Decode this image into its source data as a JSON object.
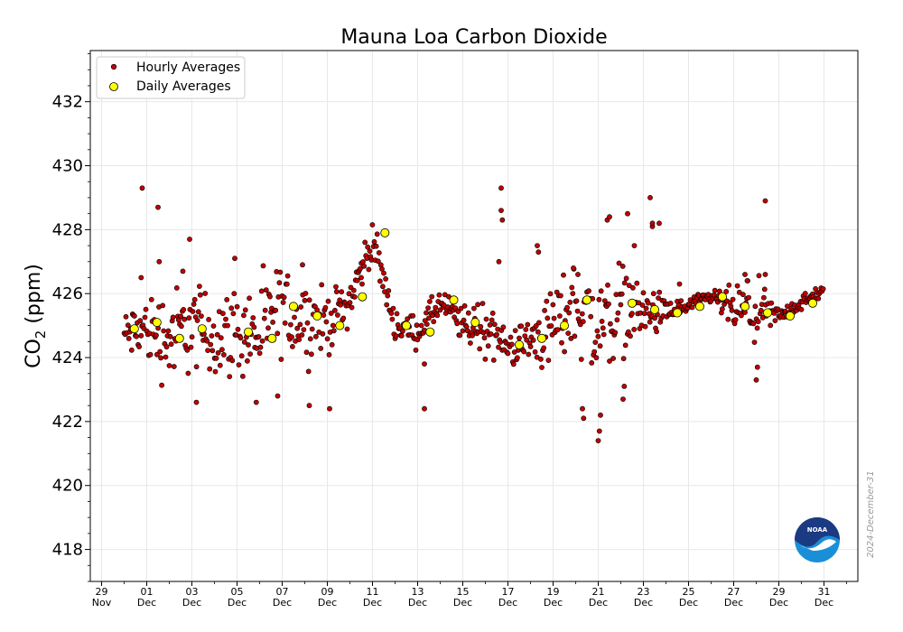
{
  "chart_data": {
    "type": "scatter",
    "title": "Mauna Loa Carbon Dioxide",
    "ylabel_prefix": "CO",
    "ylabel_sub": "2",
    "ylabel_suffix": " (ppm)",
    "xlabel": "",
    "ylim": [
      417,
      433.6
    ],
    "xlim": [
      -1.5,
      32.5
    ],
    "yticks": [
      418,
      420,
      422,
      424,
      426,
      428,
      430,
      432
    ],
    "yticks_minor_step": 0.5,
    "xticks": [
      {
        "x": -1,
        "day": "29",
        "month": "Nov"
      },
      {
        "x": 1,
        "day": "01",
        "month": "Dec"
      },
      {
        "x": 3,
        "day": "03",
        "month": "Dec"
      },
      {
        "x": 5,
        "day": "05",
        "month": "Dec"
      },
      {
        "x": 7,
        "day": "07",
        "month": "Dec"
      },
      {
        "x": 9,
        "day": "09",
        "month": "Dec"
      },
      {
        "x": 11,
        "day": "11",
        "month": "Dec"
      },
      {
        "x": 13,
        "day": "13",
        "month": "Dec"
      },
      {
        "x": 15,
        "day": "15",
        "month": "Dec"
      },
      {
        "x": 17,
        "day": "17",
        "month": "Dec"
      },
      {
        "x": 19,
        "day": "19",
        "month": "Dec"
      },
      {
        "x": 21,
        "day": "21",
        "month": "Dec"
      },
      {
        "x": 23,
        "day": "23",
        "month": "Dec"
      },
      {
        "x": 25,
        "day": "25",
        "month": "Dec"
      },
      {
        "x": 27,
        "day": "27",
        "month": "Dec"
      },
      {
        "x": 29,
        "day": "29",
        "month": "Dec"
      },
      {
        "x": 31,
        "day": "31",
        "month": "Dec"
      }
    ],
    "grid": true,
    "legend_position": "top-left",
    "series": [
      {
        "name": "Hourly Averages",
        "color": "#c00000",
        "edge": "#000000",
        "marker": "small-circle",
        "profile": [
          [
            0,
            424.7
          ],
          [
            1,
            424.9
          ],
          [
            2,
            424.6
          ],
          [
            3,
            425.0
          ],
          [
            4,
            424.7
          ],
          [
            5,
            424.8
          ],
          [
            6,
            424.7
          ],
          [
            7,
            425.5
          ],
          [
            8,
            425.2
          ],
          [
            9,
            425.1
          ],
          [
            10,
            425.8
          ],
          [
            11,
            427.7
          ],
          [
            12,
            425.0
          ],
          [
            13,
            424.8
          ],
          [
            14,
            425.7
          ],
          [
            15,
            425.0
          ],
          [
            16,
            425.0
          ],
          [
            17,
            424.3
          ],
          [
            18,
            424.5
          ],
          [
            19,
            425.0
          ],
          [
            20,
            425.7
          ],
          [
            21,
            424.9
          ],
          [
            22,
            425.6
          ],
          [
            23,
            425.4
          ],
          [
            24,
            425.4
          ],
          [
            25,
            425.6
          ],
          [
            26,
            425.9
          ],
          [
            27,
            425.5
          ],
          [
            28,
            425.4
          ],
          [
            29,
            425.3
          ],
          [
            30,
            425.7
          ],
          [
            31,
            426.1
          ]
        ],
        "spread": [
          [
            0,
            0.6
          ],
          [
            2,
            1.3
          ],
          [
            4,
            1.1
          ],
          [
            6,
            1.3
          ],
          [
            8,
            1.1
          ],
          [
            9,
            0.8
          ],
          [
            10,
            0.6
          ],
          [
            11,
            0.5
          ],
          [
            12,
            0.4
          ],
          [
            13,
            0.4
          ],
          [
            14,
            0.4
          ],
          [
            15,
            0.5
          ],
          [
            16,
            0.9
          ],
          [
            17,
            0.3
          ],
          [
            18,
            1.0
          ],
          [
            19,
            1.0
          ],
          [
            20,
            1.2
          ],
          [
            21,
            1.6
          ],
          [
            22,
            1.2
          ],
          [
            23,
            0.8
          ],
          [
            24,
            0.4
          ],
          [
            25,
            0.2
          ],
          [
            26,
            0.2
          ],
          [
            27,
            0.6
          ],
          [
            28,
            0.9
          ],
          [
            29,
            0.2
          ],
          [
            30,
            0.2
          ],
          [
            31,
            0.2
          ]
        ],
        "outliers": [
          [
            0.8,
            429.3
          ],
          [
            0.75,
            426.5
          ],
          [
            1.5,
            428.7
          ],
          [
            1.55,
            427.0
          ],
          [
            2.9,
            427.7
          ],
          [
            2.6,
            426.7
          ],
          [
            3.2,
            422.6
          ],
          [
            4.9,
            427.1
          ],
          [
            5.85,
            422.6
          ],
          [
            6.8,
            422.8
          ],
          [
            7.9,
            426.9
          ],
          [
            8.2,
            422.5
          ],
          [
            9.1,
            422.4
          ],
          [
            13.3,
            422.4
          ],
          [
            13.3,
            423.8
          ],
          [
            16.7,
            429.3
          ],
          [
            16.7,
            428.6
          ],
          [
            16.75,
            428.3
          ],
          [
            16.6,
            427.0
          ],
          [
            18.3,
            427.5
          ],
          [
            18.35,
            427.3
          ],
          [
            19.9,
            426.8
          ],
          [
            20.1,
            426.6
          ],
          [
            20.3,
            422.4
          ],
          [
            20.35,
            422.1
          ],
          [
            21.0,
            421.4
          ],
          [
            21.05,
            421.7
          ],
          [
            21.1,
            422.2
          ],
          [
            21.4,
            428.3
          ],
          [
            21.5,
            428.4
          ],
          [
            22.3,
            428.5
          ],
          [
            22.1,
            422.7
          ],
          [
            22.15,
            423.1
          ],
          [
            22.6,
            427.5
          ],
          [
            23.3,
            429.0
          ],
          [
            23.4,
            428.1
          ],
          [
            23.4,
            428.2
          ],
          [
            23.7,
            428.2
          ],
          [
            24.6,
            426.3
          ],
          [
            27.5,
            426.6
          ],
          [
            27.6,
            426.4
          ],
          [
            28.0,
            423.3
          ],
          [
            28.05,
            423.7
          ],
          [
            28.4,
            428.9
          ],
          [
            28.4,
            426.6
          ],
          [
            10.5,
            426.5
          ]
        ]
      },
      {
        "name": "Daily Averages",
        "color": "#ffff00",
        "edge": "#000000",
        "marker": "large-circle",
        "x": [
          0.45,
          1.45,
          2.45,
          3.45,
          5.5,
          6.55,
          7.5,
          8.55,
          9.55,
          10.55,
          11.55,
          12.5,
          13.55,
          14.6,
          15.55,
          17.5,
          18.5,
          19.5,
          20.5,
          22.5,
          23.5,
          24.5,
          25.5,
          26.5,
          27.5,
          28.5,
          29.5,
          30.5
        ],
        "y": [
          424.9,
          425.1,
          424.6,
          424.9,
          424.8,
          424.6,
          425.6,
          425.3,
          425.0,
          425.9,
          427.9,
          425.0,
          424.8,
          425.8,
          425.1,
          424.4,
          424.6,
          425.0,
          425.8,
          425.7,
          425.5,
          425.4,
          425.6,
          425.9,
          425.6,
          425.4,
          425.3,
          425.7
        ]
      }
    ]
  },
  "watermark": {
    "date_stamp": "2024-December-31",
    "logo_text": "NOAA"
  },
  "colors": {
    "grid": "#e8e8e8",
    "axis": "#000000",
    "noaa_dark": "#1b3a82",
    "noaa_light": "#1a8fd8"
  }
}
